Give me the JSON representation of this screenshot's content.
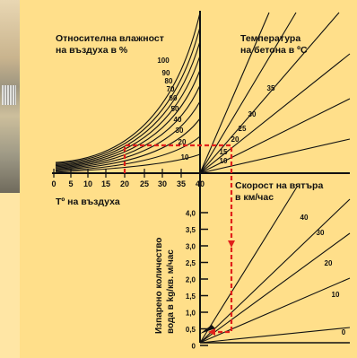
{
  "diagram": {
    "labels": {
      "humidity_title_line1": "Относителна влажност",
      "humidity_title_line2": "на въздуха в %",
      "concrete_temp_line1": "Температура",
      "concrete_temp_line2": "на бетона в ºC",
      "air_temp_label": "Tº на въздуха",
      "wind_speed_line1": "Скорост на вятъра",
      "wind_speed_line2": "в км/час",
      "evaporation_line1": "Изпарено количество",
      "evaporation_line2": "вода в kg/кв. м/час"
    },
    "humidity_curves": [
      "100",
      "90",
      "80",
      "70",
      "60",
      "50",
      "40",
      "30",
      "20",
      "10"
    ],
    "concrete_temp_lines": [
      "35",
      "30",
      "25",
      "20",
      "15",
      "10"
    ],
    "air_temp_ticks": [
      "0",
      "5",
      "10",
      "15",
      "20",
      "25",
      "30",
      "35",
      "40"
    ],
    "wind_lines": [
      "40",
      "30",
      "20",
      "10",
      "0"
    ],
    "evaporation_ticks": [
      "4,0",
      "3,5",
      "3,0",
      "2,5",
      "2,0",
      "1,5",
      "1,0",
      "0,5",
      "0"
    ],
    "colors": {
      "background": "#FFE6A5",
      "panel": "#FFDF8A",
      "lines": "#111111",
      "example_path": "#E0201B"
    }
  }
}
